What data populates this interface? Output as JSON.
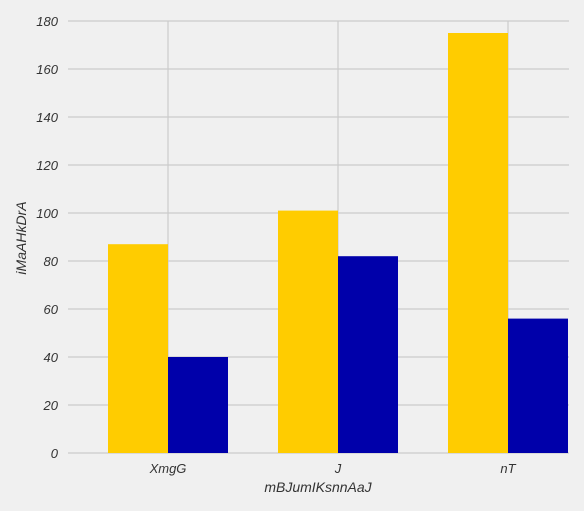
{
  "chart_data": {
    "type": "bar",
    "categories": [
      "XmgG",
      "J",
      "nT"
    ],
    "series": [
      {
        "color": "#ffcc00",
        "values": [
          87,
          101,
          175
        ]
      },
      {
        "color": "#0000aa",
        "values": [
          40,
          82,
          56
        ]
      }
    ],
    "xlabel": "mBJumIKsnnAaJ",
    "ylabel": "iMaAHkDrA",
    "ylim": [
      0,
      180
    ],
    "yticks": [
      0,
      20,
      40,
      60,
      80,
      100,
      120,
      140,
      160,
      180
    ],
    "grid": true,
    "background": "#f0f0f0",
    "grid_color": "#cbcbcb"
  }
}
